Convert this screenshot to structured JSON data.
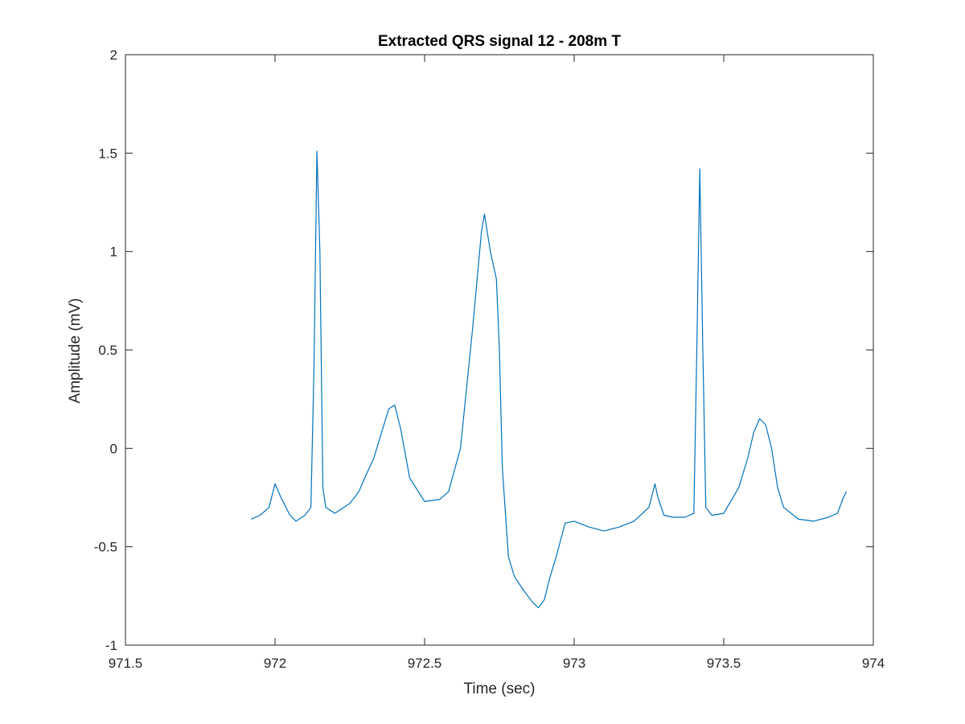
{
  "chart_data": {
    "type": "line",
    "title": "Extracted QRS signal 12 - 208m T",
    "xlabel": "Time (sec)",
    "ylabel": "Amplitude (mV)",
    "xlim": [
      971.5,
      974
    ],
    "ylim": [
      -1,
      2
    ],
    "xticks": [
      971.5,
      972,
      972.5,
      973,
      973.5,
      974
    ],
    "xtick_labels": [
      "971.5",
      "972",
      "972.5",
      "973",
      "973.5",
      "974"
    ],
    "yticks": [
      -1,
      -0.5,
      0,
      0.5,
      1,
      1.5,
      2
    ],
    "ytick_labels": [
      "-1",
      "-0.5",
      "0",
      "0.5",
      "1",
      "1.5",
      "2"
    ],
    "grid": false,
    "legend": "none",
    "series": [
      {
        "color": "#0072bd",
        "x": [
          971.92,
          971.95,
          971.98,
          972.0,
          972.02,
          972.05,
          972.07,
          972.1,
          972.12,
          972.13,
          972.14,
          972.15,
          972.16,
          972.17,
          972.2,
          972.25,
          972.28,
          972.3,
          972.33,
          972.36,
          972.38,
          972.4,
          972.42,
          972.45,
          972.5,
          972.55,
          972.58,
          972.62,
          972.66,
          972.69,
          972.7,
          972.72,
          972.74,
          972.75,
          972.76,
          972.78,
          972.8,
          972.83,
          972.86,
          972.88,
          972.9,
          972.92,
          972.94,
          972.97,
          973.0,
          973.05,
          973.1,
          973.15,
          973.2,
          973.25,
          973.27,
          973.28,
          973.3,
          973.33,
          973.37,
          973.4,
          973.41,
          973.42,
          973.43,
          973.44,
          973.46,
          973.5,
          973.55,
          973.58,
          973.6,
          973.62,
          973.64,
          973.66,
          973.68,
          973.7,
          973.75,
          973.8,
          973.85,
          973.88,
          973.9,
          973.91
        ],
        "y": [
          -0.36,
          -0.34,
          -0.3,
          -0.18,
          -0.25,
          -0.34,
          -0.37,
          -0.34,
          -0.3,
          0.4,
          1.51,
          1.0,
          -0.2,
          -0.3,
          -0.33,
          -0.28,
          -0.22,
          -0.15,
          -0.05,
          0.1,
          0.2,
          0.22,
          0.1,
          -0.15,
          -0.27,
          -0.26,
          -0.22,
          0.0,
          0.6,
          1.1,
          1.19,
          1.0,
          0.86,
          0.5,
          -0.1,
          -0.55,
          -0.65,
          -0.72,
          -0.78,
          -0.81,
          -0.77,
          -0.65,
          -0.55,
          -0.38,
          -0.37,
          -0.4,
          -0.42,
          -0.4,
          -0.37,
          -0.3,
          -0.18,
          -0.25,
          -0.34,
          -0.35,
          -0.35,
          -0.33,
          0.5,
          1.42,
          0.5,
          -0.3,
          -0.34,
          -0.33,
          -0.2,
          -0.05,
          0.08,
          0.15,
          0.12,
          0.0,
          -0.2,
          -0.3,
          -0.36,
          -0.37,
          -0.35,
          -0.33,
          -0.25,
          -0.22
        ]
      }
    ]
  }
}
